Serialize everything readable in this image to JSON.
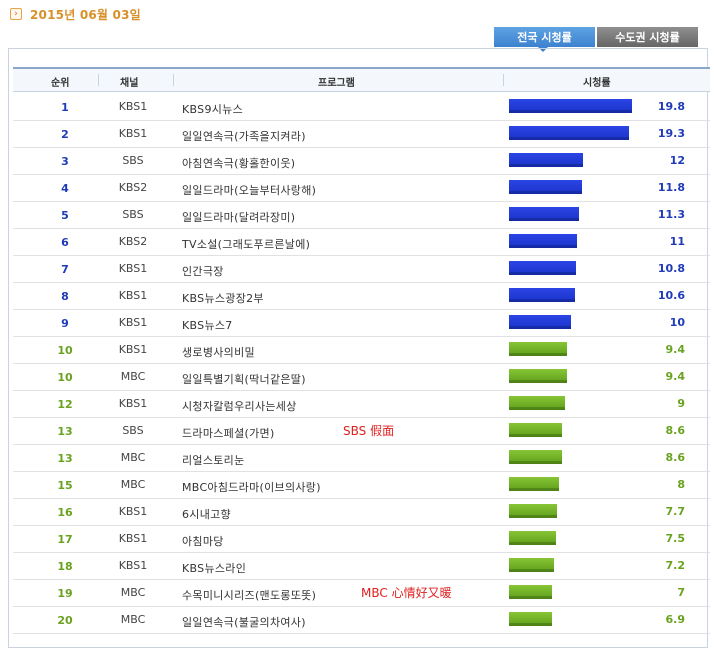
{
  "date": "2015년 06월 03일",
  "tabs": [
    {
      "label": "전국 시청률"
    },
    {
      "label": "수도권 시청률"
    }
  ],
  "headers": {
    "rank": "순위",
    "channel": "채널",
    "program": "프로그램",
    "rating": "시청률"
  },
  "colors": {
    "top_bar": "#1a33c8",
    "other_bar": "#6aa220",
    "note": "#e02020"
  },
  "rows": [
    {
      "rank": "1",
      "channel": "KBS1",
      "program": "KBS9시뉴스",
      "rating": 19.8,
      "rating_label": "19.8",
      "tier": "blue"
    },
    {
      "rank": "2",
      "channel": "KBS1",
      "program": "일일연속극(가족을지켜라)",
      "rating": 19.3,
      "rating_label": "19.3",
      "tier": "blue"
    },
    {
      "rank": "3",
      "channel": "SBS",
      "program": "아침연속극(황홀한이웃)",
      "rating": 12,
      "rating_label": "12",
      "tier": "blue"
    },
    {
      "rank": "4",
      "channel": "KBS2",
      "program": "일일드라마(오늘부터사랑해)",
      "rating": 11.8,
      "rating_label": "11.8",
      "tier": "blue"
    },
    {
      "rank": "5",
      "channel": "SBS",
      "program": "일일드라마(달려라장미)",
      "rating": 11.3,
      "rating_label": "11.3",
      "tier": "blue"
    },
    {
      "rank": "6",
      "channel": "KBS2",
      "program": "TV소설(그래도푸르른날에)",
      "rating": 11,
      "rating_label": "11",
      "tier": "blue"
    },
    {
      "rank": "7",
      "channel": "KBS1",
      "program": "인간극장",
      "rating": 10.8,
      "rating_label": "10.8",
      "tier": "blue"
    },
    {
      "rank": "8",
      "channel": "KBS1",
      "program": "KBS뉴스광장2부",
      "rating": 10.6,
      "rating_label": "10.6",
      "tier": "blue"
    },
    {
      "rank": "9",
      "channel": "KBS1",
      "program": "KBS뉴스7",
      "rating": 10,
      "rating_label": "10",
      "tier": "blue"
    },
    {
      "rank": "10",
      "channel": "KBS1",
      "program": "생로병사의비밀",
      "rating": 9.4,
      "rating_label": "9.4",
      "tier": "green"
    },
    {
      "rank": "10",
      "channel": "MBC",
      "program": "일일특별기획(딱너같은딸)",
      "rating": 9.4,
      "rating_label": "9.4",
      "tier": "green"
    },
    {
      "rank": "12",
      "channel": "KBS1",
      "program": "시청자칼럼우리사는세상",
      "rating": 9,
      "rating_label": "9",
      "tier": "green"
    },
    {
      "rank": "13",
      "channel": "SBS",
      "program": "드라마스페셜(가면)",
      "rating": 8.6,
      "rating_label": "8.6",
      "tier": "green",
      "note": "SBS 假面"
    },
    {
      "rank": "13",
      "channel": "MBC",
      "program": "리얼스토리눈",
      "rating": 8.6,
      "rating_label": "8.6",
      "tier": "green"
    },
    {
      "rank": "15",
      "channel": "MBC",
      "program": "MBC아침드라마(이브의사랑)",
      "rating": 8,
      "rating_label": "8",
      "tier": "green"
    },
    {
      "rank": "16",
      "channel": "KBS1",
      "program": "6시내고향",
      "rating": 7.7,
      "rating_label": "7.7",
      "tier": "green"
    },
    {
      "rank": "17",
      "channel": "KBS1",
      "program": "아침마당",
      "rating": 7.5,
      "rating_label": "7.5",
      "tier": "green"
    },
    {
      "rank": "18",
      "channel": "KBS1",
      "program": "KBS뉴스라인",
      "rating": 7.2,
      "rating_label": "7.2",
      "tier": "green"
    },
    {
      "rank": "19",
      "channel": "MBC",
      "program": "수목미니시리즈(맨도롱또똣)",
      "rating": 7,
      "rating_label": "7",
      "tier": "green",
      "note": "MBC 心情好又暖"
    },
    {
      "rank": "20",
      "channel": "MBC",
      "program": "일일연속극(불굴의차여사)",
      "rating": 6.9,
      "rating_label": "6.9",
      "tier": "green"
    }
  ]
}
